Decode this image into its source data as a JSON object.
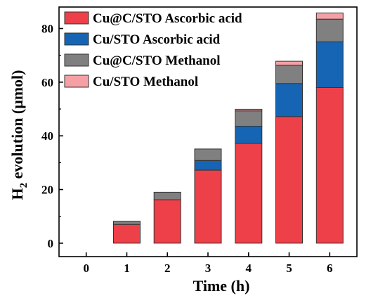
{
  "chart_data": {
    "type": "bar",
    "stacked": true,
    "categories": [
      "0",
      "1",
      "2",
      "3",
      "4",
      "5",
      "6"
    ],
    "series": [
      {
        "name": "Cu@C/STO Ascorbic acid",
        "color": "#ee4048",
        "values": [
          0,
          7.0,
          16.2,
          27.2,
          37.2,
          47.2,
          58.0
        ]
      },
      {
        "name": "Cu/STO Ascorbic acid",
        "color": "#1565b4",
        "values": [
          0,
          0.0,
          0.0,
          3.6,
          6.4,
          12.3,
          17.0
        ]
      },
      {
        "name": "Cu@C/STO Methanol",
        "color": "#808080",
        "values": [
          0,
          1.2,
          2.8,
          4.3,
          5.7,
          6.8,
          8.5
        ]
      },
      {
        "name": "Cu/STO Methanol",
        "color": "#f5a0a4",
        "values": [
          0,
          0.0,
          0.0,
          0.0,
          0.6,
          1.5,
          2.3
        ]
      }
    ],
    "xlabel": "Time (h)",
    "ylabel_main": "H",
    "ylabel_sub": "2",
    "ylabel_rest": " evolution (μmol)",
    "yticks": [
      "0",
      "20",
      "40",
      "60",
      "80"
    ],
    "ylim": [
      -5,
      88
    ],
    "grid": false,
    "legend_position": "top-left"
  }
}
